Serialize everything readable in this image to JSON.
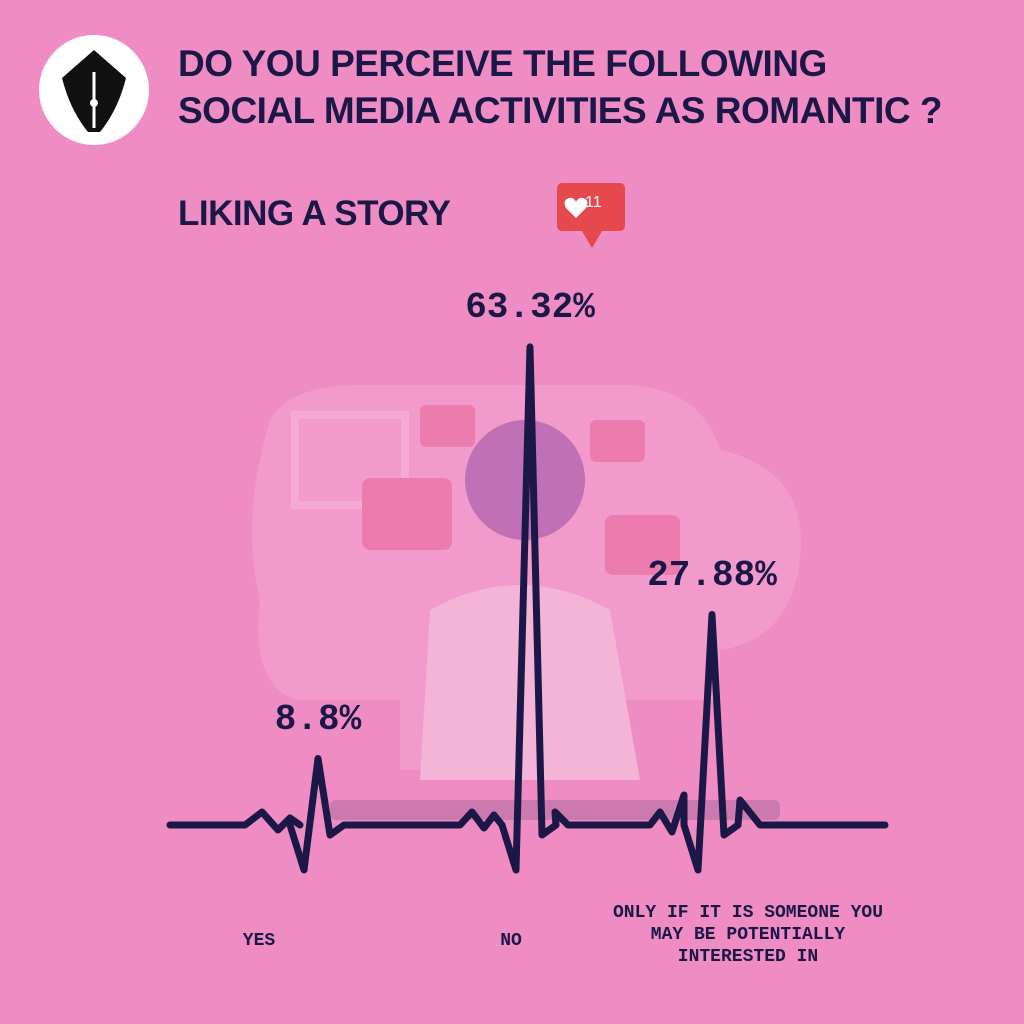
{
  "chart_data": {
    "type": "spike",
    "title": "DO YOU PERCEIVE THE FOLLOWING SOCIAL MEDIA ACTIVITIES AS ROMANTIC ?",
    "subtitle": "LIKING A STORY",
    "notification_count": 11,
    "categories": [
      "YES",
      "NO",
      "ONLY IF IT IS SOMEONE YOU MAY BE POTENTIALLY INTERESTED IN"
    ],
    "values": [
      8.8,
      63.32,
      27.88
    ],
    "value_labels": [
      "8.8%",
      "63.32%",
      "27.88%"
    ],
    "color": "#1b1848"
  }
}
